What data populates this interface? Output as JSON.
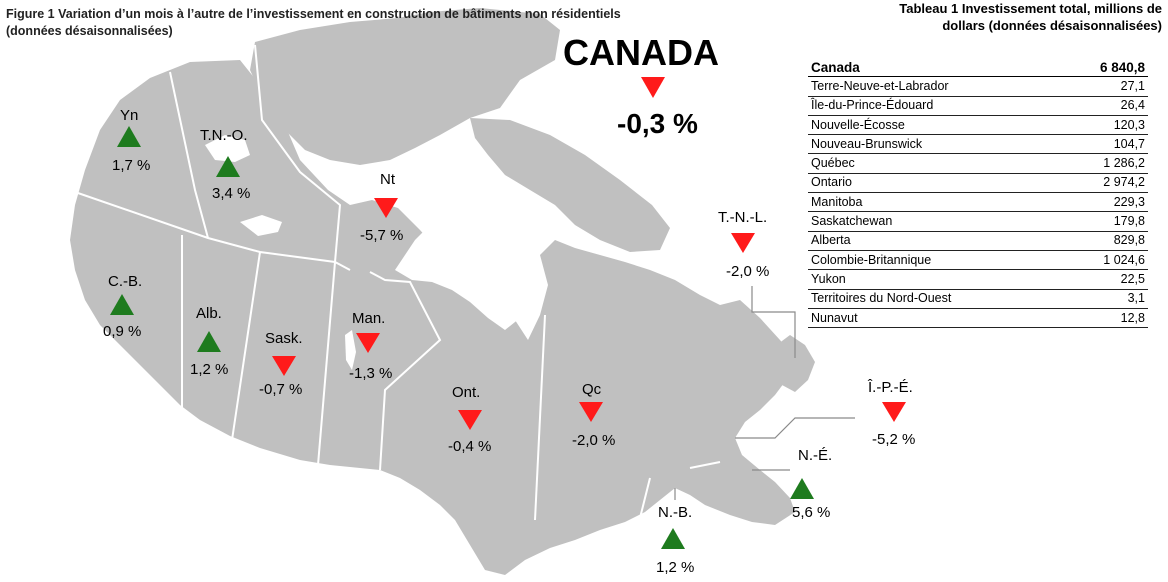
{
  "figure": {
    "title_line1": "Figure 1  Variation d’un mois à l’autre de l’investissement en construction de bâtiments non résidentiels",
    "title_line2": "(données désaisonnalisées)"
  },
  "canada": {
    "name": "CANADA",
    "change": "-0,3 %",
    "direction": "down"
  },
  "colors": {
    "up": "#1e7b1e",
    "down": "#ff1a1a",
    "land": "#c0c0c0"
  },
  "regions": {
    "yn": {
      "label": "Yn",
      "change": "1,7 %",
      "direction": "up"
    },
    "tno": {
      "label": "T.N.-O.",
      "change": "3,4 %",
      "direction": "up"
    },
    "nt": {
      "label": "Nt",
      "change": "-5,7 %",
      "direction": "down"
    },
    "cb": {
      "label": "C.-B.",
      "change": "0,9 %",
      "direction": "up"
    },
    "alb": {
      "label": "Alb.",
      "change": "1,2 %",
      "direction": "up"
    },
    "sask": {
      "label": "Sask.",
      "change": "-0,7 %",
      "direction": "down"
    },
    "man": {
      "label": "Man.",
      "change": "-1,3 %",
      "direction": "down"
    },
    "ont": {
      "label": "Ont.",
      "change": "-0,4 %",
      "direction": "down"
    },
    "qc": {
      "label": "Qc",
      "change": "-2,0 %",
      "direction": "down"
    },
    "tnl": {
      "label": "T.-N.-L.",
      "change": "-2,0 %",
      "direction": "down"
    },
    "ipe": {
      "label": "Î.-P.-É.",
      "change": "-5,2 %",
      "direction": "down"
    },
    "ne": {
      "label": "N.-É.",
      "change": "5,6 %",
      "direction": "up"
    },
    "nb": {
      "label": "N.-B.",
      "change": "1,2 %",
      "direction": "up"
    }
  },
  "table": {
    "title_line1": "Tableau 1 Investissement total, millions de",
    "title_line2": "dollars (données désaisonnalisées)",
    "total": {
      "name": "Canada",
      "value": "6 840,8"
    },
    "rows": [
      {
        "name": "Terre-Neuve-et-Labrador",
        "value": "27,1"
      },
      {
        "name": "Île-du-Prince-Édouard",
        "value": "26,4"
      },
      {
        "name": "Nouvelle-Écosse",
        "value": "120,3"
      },
      {
        "name": "Nouveau-Brunswick",
        "value": "104,7"
      },
      {
        "name": "Québec",
        "value": "1 286,2"
      },
      {
        "name": "Ontario",
        "value": "2 974,2"
      },
      {
        "name": "Manitoba",
        "value": "229,3"
      },
      {
        "name": "Saskatchewan",
        "value": "179,8"
      },
      {
        "name": "Alberta",
        "value": "829,8"
      },
      {
        "name": "Colombie-Britannique",
        "value": "1 024,6"
      },
      {
        "name": "Yukon",
        "value": "22,5"
      },
      {
        "name": "Territoires du Nord-Ouest",
        "value": "3,1"
      },
      {
        "name": "Nunavut",
        "value": "12,8"
      }
    ]
  }
}
